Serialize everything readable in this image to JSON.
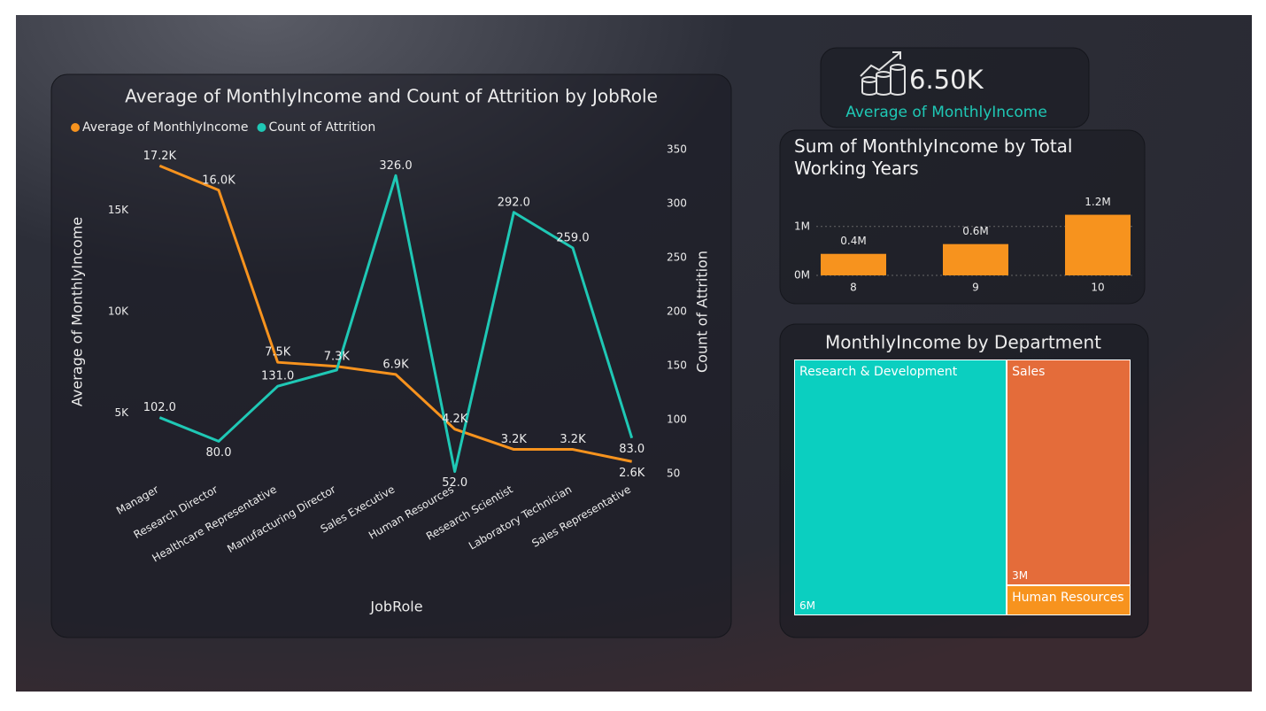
{
  "kpi": {
    "value": "6.50K",
    "label": "Average of MonthlyIncome"
  },
  "chart_data": [
    {
      "type": "line",
      "title": "Average of MonthlyIncome and Count of Attrition by JobRole",
      "x_label": "JobRole",
      "y_label": "Average of MonthlyIncome",
      "y2_label": "Count of Attrition",
      "categories": [
        "Manager",
        "Research Director",
        "Healthcare Representative",
        "Manufacturing Director",
        "Sales Executive",
        "Human Resources",
        "Research Scientist",
        "Laboratory Technician",
        "Sales Representative"
      ],
      "series": [
        {
          "name": "Average of MonthlyIncome",
          "color": "#f7931e",
          "values": [
            17200,
            16000,
            7500,
            7300,
            6900,
            4200,
            3200,
            3200,
            2600
          ],
          "value_labels": [
            "17.2K",
            "16.0K",
            "7.5K",
            "7.3K",
            "6.9K",
            "4.2K",
            "3.2K",
            "3.2K",
            "2.6K"
          ]
        },
        {
          "name": "Count of Attrition",
          "color": "#1fc8b5",
          "axis": "y2",
          "values": [
            102,
            80,
            131,
            146,
            326,
            52,
            292,
            259,
            83
          ],
          "value_labels": [
            "102.0",
            "80.0",
            "131.0",
            null,
            "326.0",
            "52.0",
            "292.0",
            "259.0",
            "83.0"
          ]
        }
      ],
      "ylim": [
        2000,
        18000
      ],
      "yticks": [
        {
          "value": 5000,
          "label": "5K"
        },
        {
          "value": 10000,
          "label": "10K"
        },
        {
          "value": 15000,
          "label": "15K"
        }
      ],
      "y2lim": [
        50,
        350
      ],
      "y2ticks": [
        50,
        100,
        150,
        200,
        250,
        300,
        350
      ]
    },
    {
      "type": "bar",
      "title": "Sum of MonthlyIncome by Total Working Years",
      "categories": [
        "8",
        "9",
        "10"
      ],
      "values": [
        440000,
        640000,
        1240000
      ],
      "value_labels": [
        "0.4M",
        "0.6M",
        "1.2M"
      ],
      "color": "#f7931e",
      "ylim": [
        0,
        1250000
      ],
      "yticks": [
        {
          "value": 0,
          "label": "0M"
        },
        {
          "value": 1000000,
          "label": "1M"
        }
      ],
      "grid": true
    },
    {
      "type": "treemap",
      "title": "MonthlyIncome by Department",
      "categories": [
        "Research & Development",
        "Sales",
        "Human Resources"
      ],
      "values": [
        6300000,
        3240000,
        430000
      ],
      "value_labels": [
        "6M",
        "3M",
        null
      ],
      "colors": [
        "#0bcfc0",
        "#e46c3a",
        "#f7931e"
      ]
    }
  ]
}
